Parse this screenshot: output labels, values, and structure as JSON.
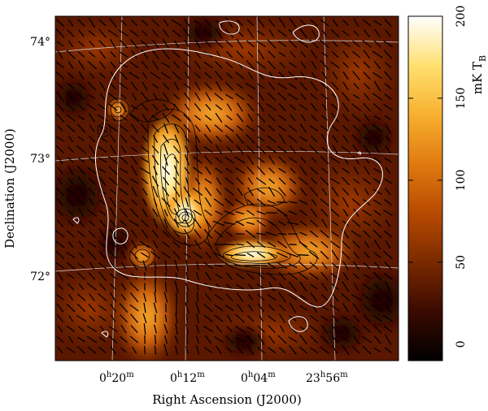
{
  "figure": {
    "xlabel": "Right Ascension (J2000)",
    "ylabel": "Declination (J2000)",
    "ra_ticks": [
      {
        "h": "0",
        "sup": "h",
        "m": "20",
        "msup": "m"
      },
      {
        "h": "0",
        "sup": "h",
        "m": "12",
        "msup": "m"
      },
      {
        "h": "0",
        "sup": "h",
        "m": "04",
        "msup": "m"
      },
      {
        "h": "23",
        "sup": "h",
        "m": "56",
        "msup": "m"
      }
    ],
    "dec_ticks": [
      "74°",
      "73°",
      "72°"
    ],
    "colorbar": {
      "min": -10,
      "max": 200,
      "ticks": [
        "0",
        "50",
        "100",
        "150",
        "200"
      ],
      "tick_values": [
        0,
        50,
        100,
        150,
        200
      ],
      "label": "mK T",
      "label_sub": "B",
      "colormap": [
        "#000000",
        "#3a0a00",
        "#7a2a00",
        "#b84a00",
        "#e07a10",
        "#f7b030",
        "#ffe070",
        "#ffffff"
      ]
    },
    "map_colors": {
      "background": "#5a1a00",
      "contour_black": "#000000",
      "contour_white": "#ffffff",
      "grid": "#dddddd",
      "vector": "#000000"
    }
  }
}
